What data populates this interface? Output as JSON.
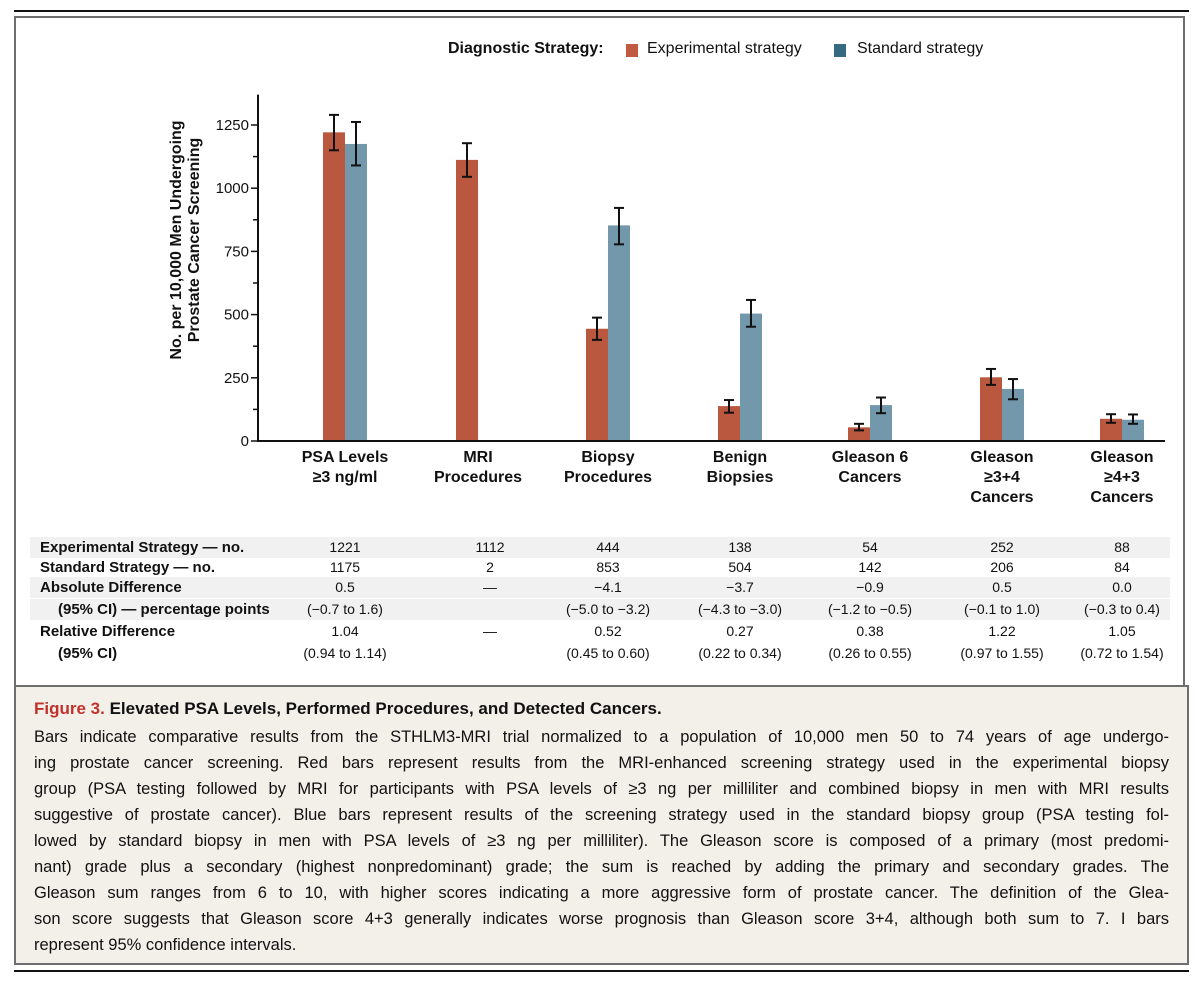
{
  "legend": {
    "title": "Diagnostic Strategy:",
    "items": [
      {
        "label": "Experimental strategy",
        "color": "#c05a40"
      },
      {
        "label": "Standard strategy",
        "color": "#356a80"
      }
    ]
  },
  "chart_data": {
    "type": "bar",
    "ylabel_lines": [
      "No. per 10,000 Men Undergoing",
      "Prostate Cancer Screening"
    ],
    "ylim": [
      0,
      1370
    ],
    "yticks": [
      0,
      250,
      500,
      750,
      1000,
      1250
    ],
    "yminor_step": 125,
    "grid": false,
    "legend_position": "top",
    "categories": [
      [
        "PSA Levels",
        "≥3 ng/ml"
      ],
      [
        "MRI",
        "Procedures"
      ],
      [
        "Biopsy",
        "Procedures"
      ],
      [
        "Benign",
        "Biopsies"
      ],
      [
        "Gleason 6",
        "Cancers"
      ],
      [
        "Gleason",
        "≥3+4",
        "Cancers"
      ],
      [
        "Gleason",
        "≥4+3",
        "Cancers"
      ]
    ],
    "series": [
      {
        "name": "Experimental strategy",
        "color": "#b9573f",
        "values": [
          1221,
          1112,
          444,
          138,
          54,
          252,
          88
        ],
        "ci": [
          [
            1150,
            1290
          ],
          [
            1045,
            1178
          ],
          [
            400,
            488
          ],
          [
            112,
            162
          ],
          [
            42,
            68
          ],
          [
            222,
            285
          ],
          [
            72,
            106
          ]
        ]
      },
      {
        "name": "Standard strategy",
        "color": "#7398ab",
        "values": [
          1175,
          2,
          853,
          504,
          142,
          206,
          84
        ],
        "ci": [
          [
            1090,
            1262
          ],
          null,
          [
            778,
            922
          ],
          [
            452,
            558
          ],
          [
            110,
            172
          ],
          [
            165,
            245
          ],
          [
            68,
            105
          ]
        ]
      }
    ]
  },
  "table": {
    "rows": [
      {
        "label": "Experimental Strategy — no.",
        "cells": [
          "1221",
          "1112",
          "444",
          "138",
          "54",
          "252",
          "88"
        ]
      },
      {
        "label": "Standard Strategy — no.",
        "cells": [
          "1175",
          "2",
          "853",
          "504",
          "142",
          "206",
          "84"
        ]
      },
      {
        "label": "Absolute Difference",
        "cells": [
          "0.5",
          "—",
          "−4.1",
          "−3.7",
          "−0.9",
          "0.5",
          "0.0"
        ]
      },
      {
        "label": "(95% CI) — percentage points",
        "cells": [
          "(−0.7 to 1.6)",
          "",
          "(−5.0 to −3.2)",
          "(−4.3 to −3.0)",
          "(−1.2 to −0.5)",
          "(−0.1 to 1.0)",
          "(−0.3 to 0.4)"
        ]
      },
      {
        "label": "Relative Difference",
        "cells": [
          "1.04",
          "—",
          "0.52",
          "0.27",
          "0.38",
          "1.22",
          "1.05"
        ]
      },
      {
        "label": "(95% CI)",
        "cells": [
          "(0.94 to 1.14)",
          "",
          "(0.45 to 0.60)",
          "(0.22 to 0.34)",
          "(0.26 to 0.55)",
          "(0.97 to 1.55)",
          "(0.72 to 1.54)"
        ]
      }
    ]
  },
  "caption": {
    "figure_label": "Figure 3.",
    "title": "Elevated PSA Levels, Performed Procedures, and Detected Cancers.",
    "lines": [
      "Bars indicate comparative results from the STHLM3-MRI trial normalized to a population of 10,000 men 50 to 74 years of age undergo-",
      "ing prostate cancer screening. Red bars represent results from the MRI-enhanced screening strategy used in the experimental biopsy",
      "group (PSA testing followed by MRI for participants with PSA levels of ≥3 ng per milliliter and combined biopsy in men with MRI results",
      "suggestive of prostate cancer). Blue bars represent results of the screening strategy used in the standard biopsy group (PSA testing fol-",
      "lowed by standard biopsy in men with PSA levels of ≥3 ng per milliliter). The Gleason score is composed of a primary (most predomi-",
      "nant) grade plus a secondary (highest nonpredominant) grade; the sum is reached by adding the primary and secondary grades. The",
      "Gleason sum ranges from 6 to 10, with higher scores indicating a more aggressive form of prostate cancer. The definition of the Glea-",
      "son score suggests that Gleason score 4+3 generally indicates worse prognosis than Gleason score 3+4, although both sum to 7. I bars",
      "represent 95% confidence intervals."
    ]
  }
}
